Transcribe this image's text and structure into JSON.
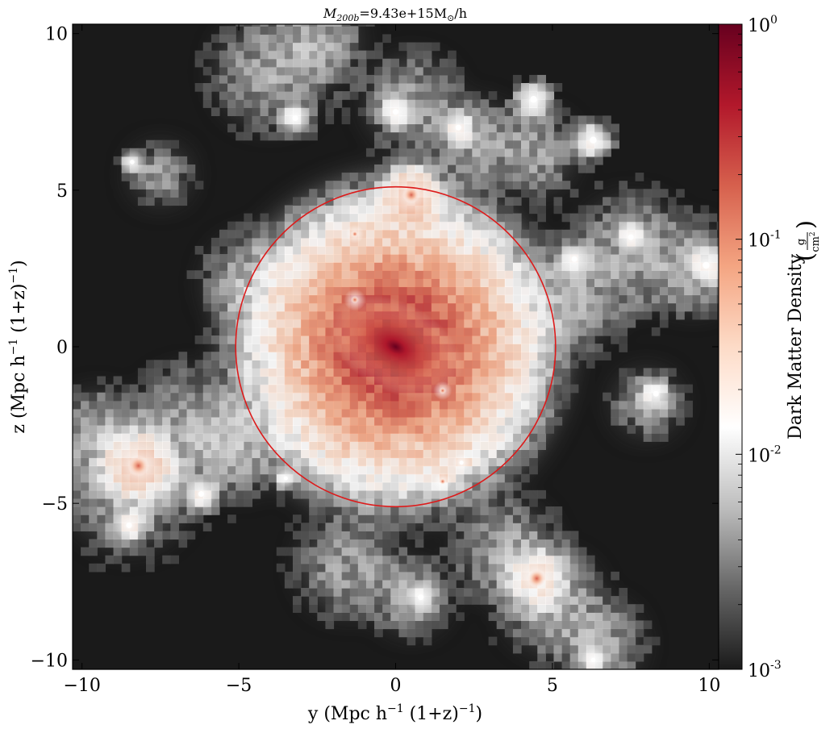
{
  "chart_data": {
    "type": "heatmap",
    "title": {
      "mass_symbol": "M",
      "mass_subscript": "200b",
      "rest": "=9.43e+15M",
      "sun_symbol": "⊙",
      "units": "/h"
    },
    "xlabel": {
      "prefix": "y  (Mpc h",
      "exp1": "−1",
      "mid": "  (1+z)",
      "exp2": "−1",
      "suffix": ")"
    },
    "ylabel": {
      "prefix": "z  (Mpc h",
      "exp1": "−1",
      "mid": "  (1+z)",
      "exp2": "−1",
      "suffix": ")"
    },
    "xlim": [
      -10.3,
      10.3
    ],
    "ylim": [
      -10.3,
      10.3
    ],
    "xticks": [
      {
        "value": -10,
        "label": "−10"
      },
      {
        "value": -5,
        "label": "−5"
      },
      {
        "value": 0,
        "label": "0"
      },
      {
        "value": 5,
        "label": "5"
      },
      {
        "value": 10,
        "label": "10"
      }
    ],
    "yticks": [
      {
        "value": -10,
        "label": "−10"
      },
      {
        "value": -5,
        "label": "−5"
      },
      {
        "value": 0,
        "label": "0"
      },
      {
        "value": 5,
        "label": "5"
      },
      {
        "value": 10,
        "label": "10"
      }
    ],
    "circle": {
      "center": [
        0,
        0
      ],
      "radius": 5.1,
      "color": "#dd1a1a"
    },
    "colorbar": {
      "label": "Dark Matter Density",
      "unit_numerator": "g",
      "unit_denominator": "cm",
      "unit_denominator_exp": "2",
      "scale": "log",
      "range": [
        0.001,
        1
      ],
      "ticks": [
        {
          "value": 1,
          "base": "10",
          "exp": "0"
        },
        {
          "value": 0.1,
          "base": "10",
          "exp": "-1"
        },
        {
          "value": 0.01,
          "base": "10",
          "exp": "-2"
        },
        {
          "value": 0.001,
          "base": "10",
          "exp": "-3"
        }
      ],
      "colormap": [
        "#1a1a1a",
        "#666666",
        "#bdbdbd",
        "#ffffff",
        "#fddbc7",
        "#f4a582",
        "#d6604d",
        "#b2182b",
        "#67001f"
      ]
    },
    "halos": [
      {
        "x": 0,
        "y": 0,
        "density": 1.0,
        "size": 2.3
      },
      {
        "x": 0.5,
        "y": 4.85,
        "density": 0.2,
        "size": 0.8
      },
      {
        "x": -8.2,
        "y": -3.8,
        "density": 0.15,
        "size": 1.0
      },
      {
        "x": 4.5,
        "y": -7.4,
        "density": 0.08,
        "size": 0.9
      },
      {
        "x": -1.3,
        "y": 1.5,
        "density": 0.09,
        "size": 0.35
      },
      {
        "x": 1.5,
        "y": -1.4,
        "density": 0.08,
        "size": 0.3
      },
      {
        "x": -1.3,
        "y": 3.6,
        "density": 0.06,
        "size": 0.3
      },
      {
        "x": 1.5,
        "y": -4.3,
        "density": 0.06,
        "size": 0.3
      },
      {
        "x": -3.5,
        "y": -4.2,
        "density": 0.04,
        "size": 0.3
      },
      {
        "x": 2.1,
        "y": -3.7,
        "density": 0.05,
        "size": 0.3
      },
      {
        "x": 2.0,
        "y": 7.0,
        "density": 0.05,
        "size": 0.5
      },
      {
        "x": -6.2,
        "y": -4.7,
        "density": 0.05,
        "size": 0.5
      },
      {
        "x": -8.5,
        "y": -5.7,
        "density": 0.05,
        "size": 0.5
      },
      {
        "x": 6.3,
        "y": 6.6,
        "density": 0.04,
        "size": 0.6
      },
      {
        "x": 4.4,
        "y": 7.9,
        "density": 0.04,
        "size": 0.6
      },
      {
        "x": 0,
        "y": 7.5,
        "density": 0.04,
        "size": 0.5
      },
      {
        "x": 5.7,
        "y": 2.8,
        "density": 0.04,
        "size": 0.5
      },
      {
        "x": 8.3,
        "y": -1.5,
        "density": 0.03,
        "size": 0.5
      },
      {
        "x": -3.2,
        "y": 7.3,
        "density": 0.03,
        "size": 0.5
      },
      {
        "x": -8.4,
        "y": 5.9,
        "density": 0.03,
        "size": 0.4
      },
      {
        "x": 9.9,
        "y": 2.6,
        "density": 0.04,
        "size": 0.6
      },
      {
        "x": 7.5,
        "y": 3.5,
        "density": 0.03,
        "size": 0.5
      },
      {
        "x": 6.3,
        "y": -10.0,
        "density": 0.03,
        "size": 0.4
      },
      {
        "x": 0.8,
        "y": -8.0,
        "density": 0.02,
        "size": 0.5
      }
    ]
  }
}
